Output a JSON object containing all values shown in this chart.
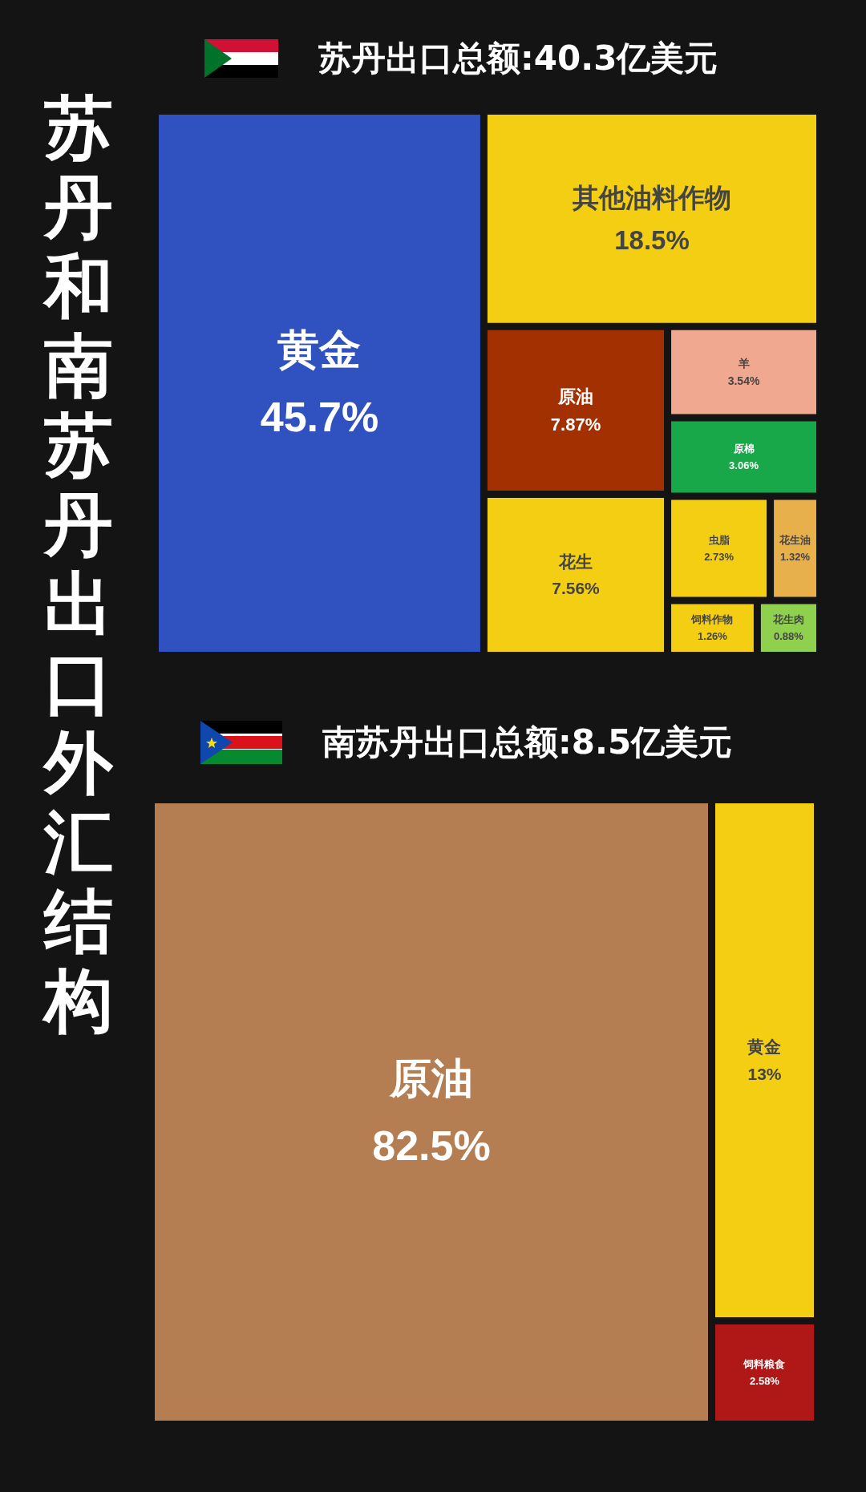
{
  "chart_data": [
    {
      "type": "other",
      "title": "苏丹和南苏丹出口外汇结构",
      "subtitle": "苏丹出口总额:40.3亿美元",
      "categories": [
        "黄金",
        "其他油料作物",
        "花生",
        "虫脂",
        "饲料作物",
        "原油",
        "羊",
        "原棉",
        "花生肉",
        "花生油"
      ],
      "values": [
        45.7,
        18.5,
        7.56,
        2.73,
        1.26,
        7.87,
        3.54,
        3.06,
        0.88,
        1.32
      ],
      "value_labels": [
        "45.7%",
        "18.5%",
        "7.56%",
        "2.73%",
        "1.26%",
        "7.87%",
        "3.54%",
        "3.06%",
        "0.88%",
        "1.32%"
      ],
      "colors": [
        "#2f52c0",
        "#f3ce12",
        "#f3ce12",
        "#f3ce12",
        "#f3ce12",
        "#a33000",
        "#f0a890",
        "#18a84a",
        "#8fd14f",
        "#e8b04a"
      ]
    },
    {
      "type": "other",
      "subtitle": "南苏丹出口总额:8.5亿美元",
      "categories": [
        "原油",
        "黄金",
        "饲料粮食"
      ],
      "values": [
        82.5,
        13,
        2.58
      ],
      "value_labels": [
        "82.5%",
        "13%",
        "2.58%"
      ],
      "colors": [
        "#b57e52",
        "#f3ce12",
        "#b01818"
      ]
    }
  ]
}
